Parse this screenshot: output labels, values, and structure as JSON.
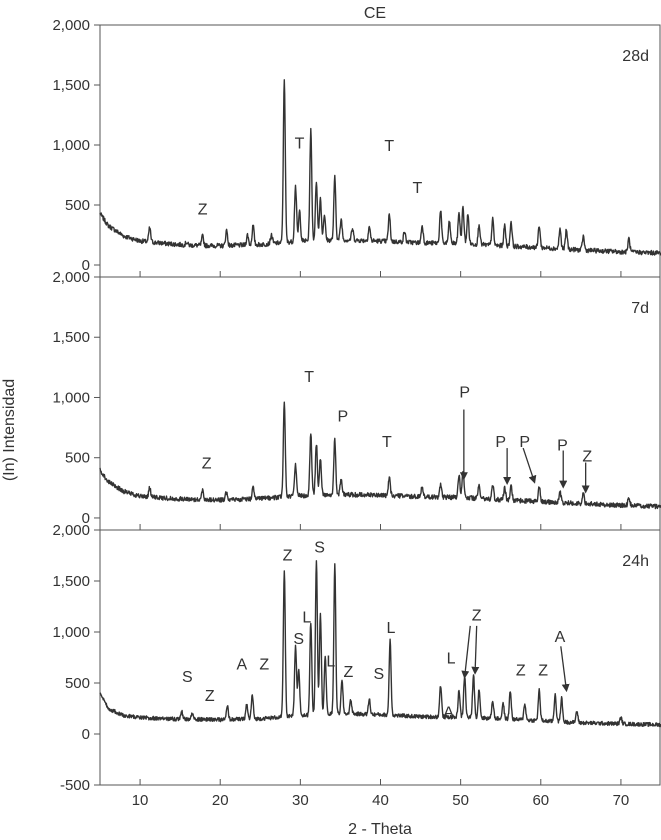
{
  "chart_data": {
    "type": "line",
    "title": "CE",
    "xlabel": "2 - Theta",
    "ylabel": "(In) Intensidad",
    "xlim": [
      5,
      75
    ],
    "xticks": [
      "10",
      "20",
      "30",
      "40",
      "50",
      "60",
      "70"
    ],
    "grid": false,
    "legend": "none",
    "line_color": "#333333",
    "panels": [
      {
        "tag": "28d",
        "ylim": [
          -100,
          2000
        ],
        "yticks": [
          "0",
          "500",
          "1,000",
          "1,500",
          "2,000"
        ],
        "baseline": [
          [
            5,
            430
          ],
          [
            6,
            330
          ],
          [
            8,
            240
          ],
          [
            10,
            200
          ],
          [
            13,
            180
          ],
          [
            16,
            165
          ],
          [
            20,
            160
          ],
          [
            25,
            170
          ],
          [
            30,
            200
          ],
          [
            35,
            210
          ],
          [
            40,
            200
          ],
          [
            45,
            185
          ],
          [
            50,
            180
          ],
          [
            55,
            160
          ],
          [
            60,
            145
          ],
          [
            65,
            125
          ],
          [
            70,
            110
          ],
          [
            75,
            100
          ]
        ],
        "peaks": [
          [
            11.2,
            310
          ],
          [
            15.8,
            190
          ],
          [
            17.8,
            240
          ],
          [
            20.8,
            290
          ],
          [
            23.4,
            250
          ],
          [
            24.1,
            330
          ],
          [
            26.4,
            250
          ],
          [
            28.0,
            1550
          ],
          [
            29.4,
            660
          ],
          [
            29.9,
            450
          ],
          [
            31.3,
            1120
          ],
          [
            32.0,
            700
          ],
          [
            32.5,
            560
          ],
          [
            33.0,
            420
          ],
          [
            34.3,
            730
          ],
          [
            35.1,
            380
          ],
          [
            36.5,
            300
          ],
          [
            38.6,
            320
          ],
          [
            41.1,
            420
          ],
          [
            43.0,
            280
          ],
          [
            45.2,
            330
          ],
          [
            47.5,
            460
          ],
          [
            48.6,
            360
          ],
          [
            49.8,
            440
          ],
          [
            50.3,
            480
          ],
          [
            50.9,
            420
          ],
          [
            52.3,
            340
          ],
          [
            54.0,
            380
          ],
          [
            55.5,
            330
          ],
          [
            56.3,
            360
          ],
          [
            59.8,
            330
          ],
          [
            62.4,
            300
          ],
          [
            63.2,
            290
          ],
          [
            65.3,
            240
          ],
          [
            71.0,
            220
          ]
        ],
        "labels": [
          {
            "text": "Z",
            "x": 17.8,
            "y": 470
          },
          {
            "text": "T",
            "x": 29.9,
            "y": 1020
          },
          {
            "text": "T",
            "x": 41.1,
            "y": 1000
          },
          {
            "text": "T",
            "x": 44.6,
            "y": 650
          }
        ],
        "arrows": []
      },
      {
        "tag": "7d",
        "ylim": [
          -100,
          2000
        ],
        "yticks": [
          "0",
          "500",
          "1,000",
          "1,500",
          "2,000"
        ],
        "baseline": [
          [
            5,
            400
          ],
          [
            6,
            300
          ],
          [
            8,
            220
          ],
          [
            10,
            180
          ],
          [
            13,
            165
          ],
          [
            16,
            155
          ],
          [
            20,
            150
          ],
          [
            25,
            160
          ],
          [
            30,
            185
          ],
          [
            35,
            195
          ],
          [
            40,
            190
          ],
          [
            45,
            175
          ],
          [
            50,
            170
          ],
          [
            55,
            150
          ],
          [
            60,
            135
          ],
          [
            65,
            120
          ],
          [
            70,
            105
          ],
          [
            75,
            95
          ]
        ],
        "peaks": [
          [
            11.2,
            250
          ],
          [
            17.8,
            230
          ],
          [
            20.8,
            220
          ],
          [
            24.1,
            270
          ],
          [
            28.0,
            970
          ],
          [
            29.4,
            450
          ],
          [
            31.3,
            700
          ],
          [
            32.0,
            620
          ],
          [
            32.5,
            500
          ],
          [
            34.3,
            650
          ],
          [
            35.1,
            330
          ],
          [
            41.1,
            330
          ],
          [
            45.2,
            260
          ],
          [
            47.5,
            280
          ],
          [
            49.8,
            360
          ],
          [
            50.3,
            380
          ],
          [
            52.3,
            270
          ],
          [
            54.0,
            280
          ],
          [
            55.5,
            250
          ],
          [
            56.3,
            270
          ],
          [
            59.8,
            260
          ],
          [
            62.4,
            220
          ],
          [
            65.3,
            200
          ],
          [
            71.0,
            170
          ]
        ],
        "labels": [
          {
            "text": "Z",
            "x": 18.3,
            "y": 460
          },
          {
            "text": "T",
            "x": 31.1,
            "y": 1180
          },
          {
            "text": "P",
            "x": 35.3,
            "y": 850
          },
          {
            "text": "T",
            "x": 40.8,
            "y": 640
          },
          {
            "text": "P",
            "x": 50.5,
            "y": 1050
          },
          {
            "text": "P",
            "x": 55.0,
            "y": 640
          },
          {
            "text": "P",
            "x": 58.0,
            "y": 640
          },
          {
            "text": "P",
            "x": 62.7,
            "y": 610
          },
          {
            "text": "Z",
            "x": 65.8,
            "y": 520
          }
        ],
        "arrows": [
          [
            50.4,
            900,
            50.4,
            330
          ],
          [
            55.8,
            580,
            55.8,
            290
          ],
          [
            57.8,
            580,
            59.2,
            300
          ],
          [
            62.8,
            560,
            62.8,
            260
          ],
          [
            65.6,
            460,
            65.6,
            220
          ]
        ]
      },
      {
        "tag": "24h",
        "ylim": [
          -500,
          2000
        ],
        "yticks": [
          "-500",
          "0",
          "500",
          "1,000",
          "1,500",
          "2,000"
        ],
        "baseline": [
          [
            5,
            400
          ],
          [
            6,
            250
          ],
          [
            8,
            180
          ],
          [
            10,
            160
          ],
          [
            13,
            150
          ],
          [
            16,
            145
          ],
          [
            20,
            140
          ],
          [
            25,
            150
          ],
          [
            30,
            180
          ],
          [
            35,
            200
          ],
          [
            40,
            190
          ],
          [
            45,
            170
          ],
          [
            50,
            165
          ],
          [
            55,
            150
          ],
          [
            60,
            130
          ],
          [
            65,
            110
          ],
          [
            70,
            100
          ],
          [
            75,
            90
          ]
        ],
        "peaks": [
          [
            15.2,
            220
          ],
          [
            16.5,
            200
          ],
          [
            20.9,
            270
          ],
          [
            23.3,
            290
          ],
          [
            24.0,
            380
          ],
          [
            28.0,
            1600
          ],
          [
            29.4,
            850
          ],
          [
            29.8,
            620
          ],
          [
            31.3,
            1100
          ],
          [
            32.0,
            1710
          ],
          [
            32.5,
            1180
          ],
          [
            33.1,
            760
          ],
          [
            34.3,
            1650
          ],
          [
            35.2,
            520
          ],
          [
            36.3,
            330
          ],
          [
            38.6,
            340
          ],
          [
            41.2,
            920
          ],
          [
            47.5,
            480
          ],
          [
            49.8,
            430
          ],
          [
            50.5,
            560
          ],
          [
            51.6,
            580
          ],
          [
            52.3,
            440
          ],
          [
            54.0,
            330
          ],
          [
            55.3,
            300
          ],
          [
            56.2,
            420
          ],
          [
            58.0,
            300
          ],
          [
            59.8,
            430
          ],
          [
            61.8,
            390
          ],
          [
            62.6,
            350
          ],
          [
            64.5,
            220
          ],
          [
            70.0,
            160
          ]
        ],
        "labels": [
          {
            "text": "S",
            "x": 15.9,
            "y": 570
          },
          {
            "text": "Z",
            "x": 18.7,
            "y": 380
          },
          {
            "text": "A",
            "x": 22.7,
            "y": 690
          },
          {
            "text": "Z",
            "x": 25.5,
            "y": 690
          },
          {
            "text": "Z",
            "x": 28.4,
            "y": 1760
          },
          {
            "text": "S",
            "x": 32.4,
            "y": 1840
          },
          {
            "text": "L",
            "x": 30.8,
            "y": 1150
          },
          {
            "text": "S",
            "x": 29.8,
            "y": 940
          },
          {
            "text": "L",
            "x": 33.8,
            "y": 720
          },
          {
            "text": "Z",
            "x": 36.0,
            "y": 620
          },
          {
            "text": "S",
            "x": 39.8,
            "y": 600
          },
          {
            "text": "L",
            "x": 41.3,
            "y": 1050
          },
          {
            "text": "L",
            "x": 48.8,
            "y": 750
          },
          {
            "text": "A",
            "x": 48.5,
            "y": 220
          },
          {
            "text": "Z",
            "x": 52.0,
            "y": 1170
          },
          {
            "text": "Z",
            "x": 57.5,
            "y": 630
          },
          {
            "text": "Z",
            "x": 60.3,
            "y": 630
          },
          {
            "text": "A",
            "x": 62.4,
            "y": 960
          }
        ],
        "arrows": [
          [
            51.2,
            1060,
            50.5,
            560
          ],
          [
            52.0,
            1060,
            51.8,
            600
          ],
          [
            62.5,
            860,
            63.2,
            430
          ]
        ]
      }
    ]
  }
}
